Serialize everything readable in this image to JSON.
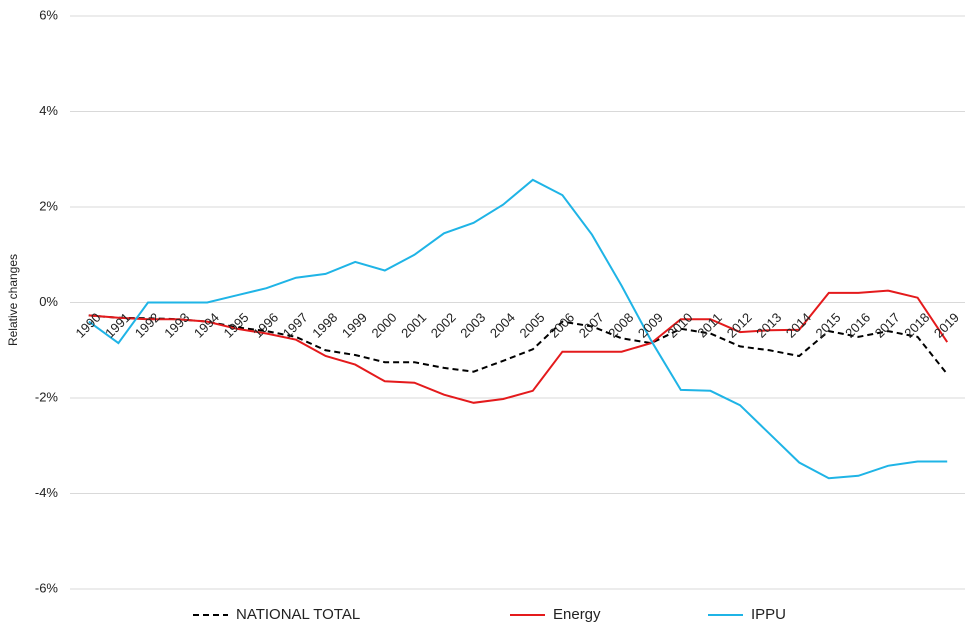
{
  "chart_data": {
    "type": "line",
    "y_label": "Relative changes",
    "categories": [
      "1990",
      "1991",
      "1992",
      "1993",
      "1994",
      "1995",
      "1996",
      "1997",
      "1998",
      "1999",
      "2000",
      "2001",
      "2002",
      "2003",
      "2004",
      "2005",
      "2006",
      "2007",
      "2008",
      "2009",
      "2010",
      "2011",
      "2012",
      "2013",
      "2014",
      "2015",
      "2016",
      "2017",
      "2018",
      "2019"
    ],
    "series": [
      {
        "name": "NATIONAL TOTAL",
        "color": "#000000",
        "dashed": true,
        "values": [
          -0.27,
          -0.32,
          -0.33,
          -0.35,
          -0.4,
          -0.52,
          -0.6,
          -0.72,
          -1.0,
          -1.1,
          -1.25,
          -1.25,
          -1.37,
          -1.45,
          -1.22,
          -0.98,
          -0.4,
          -0.5,
          -0.75,
          -0.85,
          -0.55,
          -0.65,
          -0.92,
          -1.0,
          -1.12,
          -0.6,
          -0.72,
          -0.6,
          -0.72,
          -1.5
        ]
      },
      {
        "name": "Energy",
        "color": "#e41a1c",
        "dashed": false,
        "values": [
          -0.27,
          -0.32,
          -0.35,
          -0.35,
          -0.4,
          -0.55,
          -0.65,
          -0.78,
          -1.12,
          -1.3,
          -1.65,
          -1.68,
          -1.93,
          -2.1,
          -2.02,
          -1.85,
          -1.03,
          -1.03,
          -1.03,
          -0.85,
          -0.35,
          -0.35,
          -0.62,
          -0.58,
          -0.57,
          0.2,
          0.2,
          0.25,
          0.1,
          -0.83
        ]
      },
      {
        "name": "IPPU",
        "color": "#1fb4e6",
        "dashed": false,
        "values": [
          -0.4,
          -0.85,
          0.0,
          0.0,
          0.0,
          0.15,
          0.3,
          0.52,
          0.6,
          0.85,
          0.67,
          1.0,
          1.45,
          1.67,
          2.05,
          2.57,
          2.25,
          1.42,
          0.35,
          -0.8,
          -1.83,
          -1.85,
          -2.15,
          -2.75,
          -3.35,
          -3.68,
          -3.63,
          -3.42,
          -3.33,
          -3.33
        ]
      }
    ],
    "ylim": [
      -6,
      6
    ],
    "yticks": [
      {
        "value": -6,
        "label": "-6%"
      },
      {
        "value": -4,
        "label": "-4%"
      },
      {
        "value": -2,
        "label": "-2%"
      },
      {
        "value": 0,
        "label": "0%"
      },
      {
        "value": 2,
        "label": "2%"
      },
      {
        "value": 4,
        "label": "4%"
      },
      {
        "value": 6,
        "label": "6%"
      }
    ],
    "grid": true,
    "legend": "bottom"
  }
}
